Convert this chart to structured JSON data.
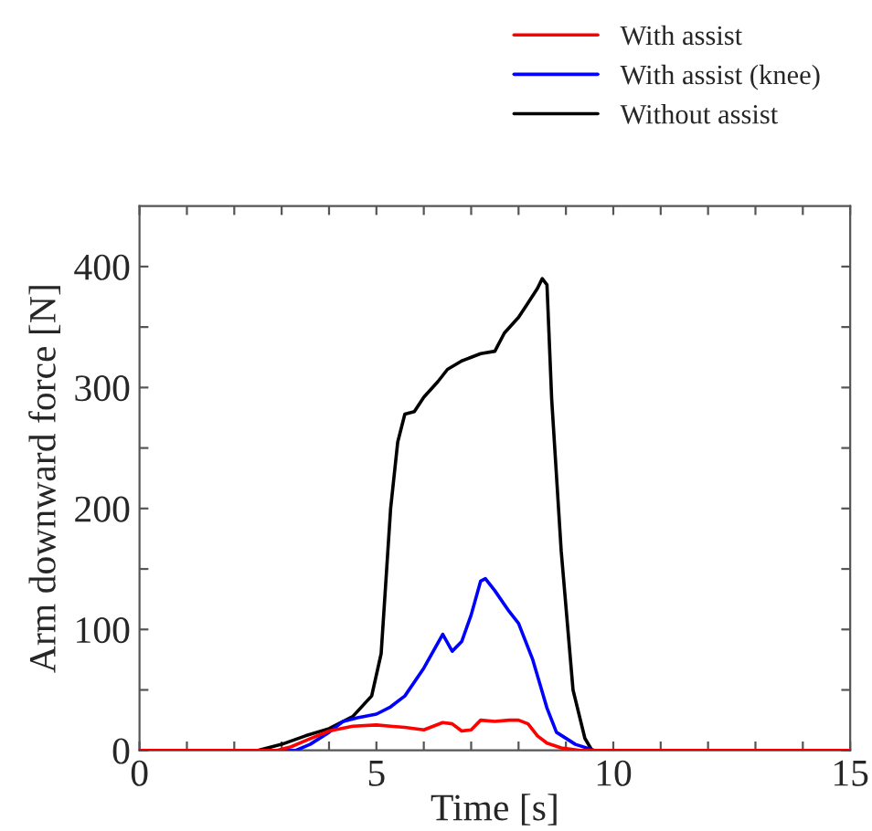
{
  "chart_data": {
    "type": "line",
    "xlabel": "Time [s]",
    "ylabel": "Arm downward force [N]",
    "xlim": [
      0,
      15
    ],
    "ylim": [
      0,
      450
    ],
    "xticks": [
      0,
      {
        "value": 1,
        "label": null
      },
      {
        "value": 2,
        "label": null
      },
      {
        "value": 3,
        "label": null
      },
      {
        "value": 4,
        "label": null
      },
      5,
      {
        "value": 6,
        "label": null
      },
      {
        "value": 7,
        "label": null
      },
      {
        "value": 8,
        "label": null
      },
      {
        "value": 9,
        "label": null
      },
      10,
      {
        "value": 11,
        "label": null
      },
      {
        "value": 12,
        "label": null
      },
      {
        "value": 13,
        "label": null
      },
      {
        "value": 14,
        "label": null
      },
      15
    ],
    "yticks": [
      0,
      {
        "value": 50,
        "label": null
      },
      100,
      {
        "value": 150,
        "label": null
      },
      200,
      {
        "value": 250,
        "label": null
      },
      300,
      {
        "value": 350,
        "label": null
      },
      400
    ],
    "grid": false,
    "legend": "top right",
    "marker": "none",
    "line_style": "solid",
    "series": [
      {
        "name": "With assist",
        "color": "#ff0000",
        "x": [
          0,
          2.9,
          3.2,
          3.5,
          4,
          4.5,
          5,
          5.3,
          5.6,
          6,
          6.2,
          6.4,
          6.6,
          6.8,
          7,
          7.2,
          7.5,
          7.8,
          8,
          8.2,
          8.4,
          8.6,
          8.9,
          9.3,
          10,
          15
        ],
        "values": [
          0,
          0,
          3,
          8,
          16,
          20,
          21,
          20,
          19,
          17,
          20,
          23,
          22,
          16,
          17,
          25,
          24,
          25,
          25,
          22,
          12,
          6,
          2,
          0,
          0,
          0
        ]
      },
      {
        "name": "With assist (knee)",
        "color": "#0000ff",
        "x": [
          0,
          3.3,
          3.6,
          4,
          4.3,
          4.6,
          5,
          5.3,
          5.6,
          6,
          6.2,
          6.4,
          6.6,
          6.8,
          7,
          7.2,
          7.3,
          7.5,
          7.8,
          8,
          8.3,
          8.6,
          8.8,
          9.2,
          9.6,
          15
        ],
        "values": [
          0,
          0,
          5,
          15,
          24,
          27,
          30,
          36,
          45,
          68,
          82,
          96,
          82,
          90,
          112,
          140,
          142,
          132,
          115,
          105,
          75,
          35,
          15,
          5,
          0,
          0
        ]
      },
      {
        "name": "Without assist",
        "color": "#000000",
        "x": [
          0,
          2.5,
          3,
          3.5,
          4,
          4.5,
          4.9,
          5.1,
          5.3,
          5.45,
          5.6,
          5.8,
          6,
          6.3,
          6.5,
          6.8,
          7,
          7.2,
          7.5,
          7.7,
          8,
          8.2,
          8.4,
          8.5,
          8.6,
          8.7,
          8.9,
          9.15,
          9.4,
          9.55,
          10,
          15
        ],
        "values": [
          0,
          0,
          5,
          12,
          18,
          28,
          45,
          80,
          200,
          255,
          278,
          280,
          292,
          305,
          315,
          322,
          325,
          328,
          330,
          345,
          358,
          370,
          382,
          390,
          385,
          290,
          165,
          50,
          10,
          0,
          0,
          0
        ]
      }
    ]
  }
}
